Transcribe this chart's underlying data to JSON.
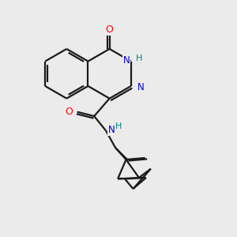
{
  "background_color": "#ebebeb",
  "bond_color": "#1a1a1a",
  "O_color": "#ff0000",
  "N_color": "#0000cc",
  "NH_color": "#008080",
  "figsize": [
    3.0,
    3.0
  ],
  "dpi": 100,
  "lw": 1.6,
  "xlim": [
    0,
    10
  ],
  "ylim": [
    0,
    10
  ]
}
